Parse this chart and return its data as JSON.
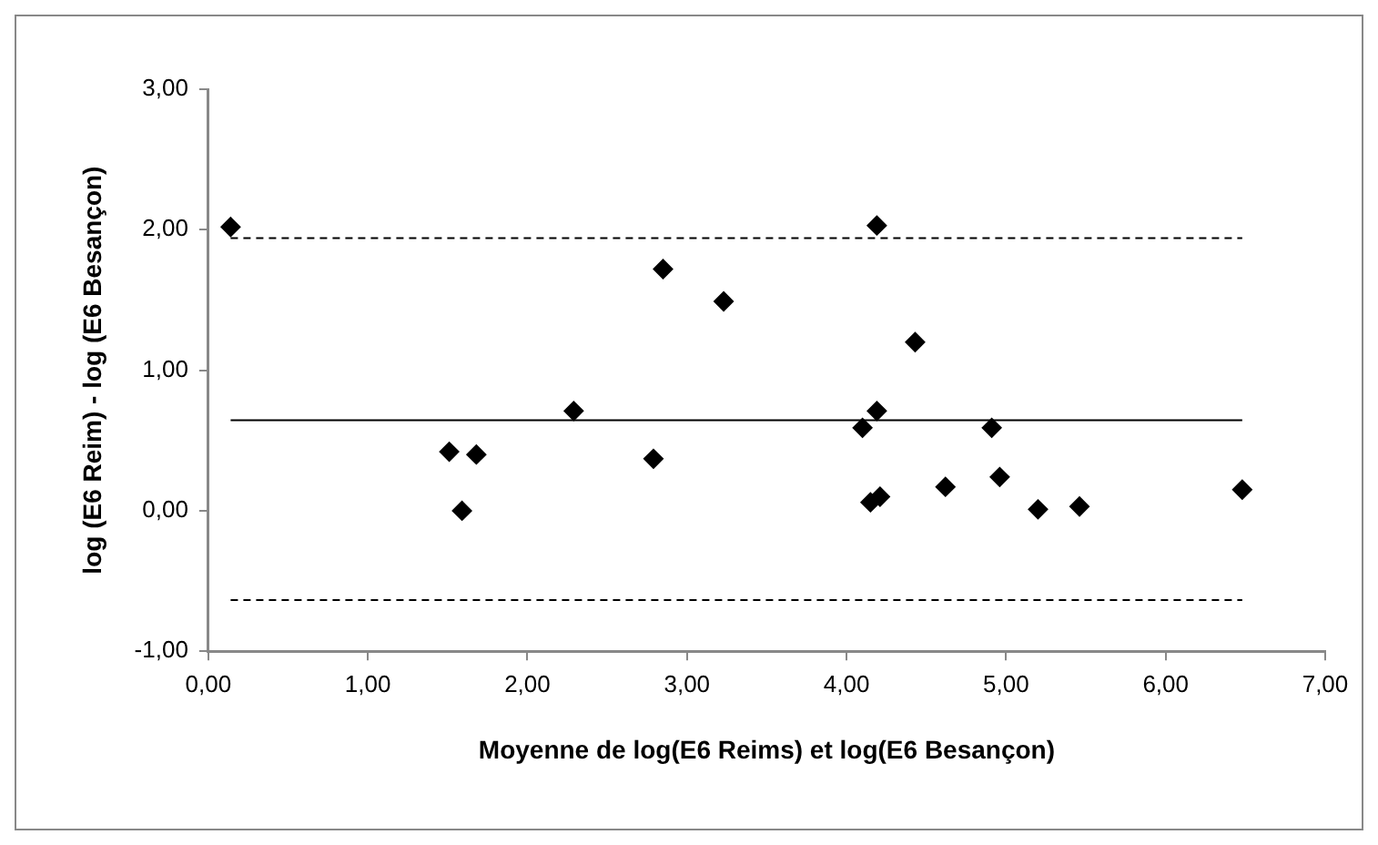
{
  "chart_data": {
    "type": "scatter",
    "xlabel": "Moyenne de log(E6 Reims) et log(E6 Besançon)",
    "ylabel": "log (E6 Reim) - log (E6 Besançon)",
    "x": [
      0.14,
      1.51,
      1.68,
      1.59,
      2.29,
      2.79,
      2.85,
      3.23,
      4.19,
      4.43,
      4.19,
      4.1,
      4.91,
      4.96,
      4.62,
      4.15,
      4.21,
      5.2,
      5.46,
      6.48
    ],
    "series": [
      {
        "color": "#000000",
        "values": [
          2.02,
          0.42,
          0.4,
          0.0,
          0.71,
          0.37,
          1.72,
          1.49,
          2.03,
          1.2,
          0.71,
          0.59,
          0.59,
          0.24,
          0.17,
          0.06,
          0.1,
          0.01,
          0.03,
          0.15
        ]
      }
    ],
    "marker": "diamond",
    "grid": false,
    "legend": false,
    "xlim": [
      0,
      7
    ],
    "ylim": [
      -1,
      3
    ],
    "xticks": [
      {
        "value": 0,
        "label": "0,00"
      },
      {
        "value": 1,
        "label": "1,00"
      },
      {
        "value": 2,
        "label": "2,00"
      },
      {
        "value": 3,
        "label": "3,00"
      },
      {
        "value": 4,
        "label": "4,00"
      },
      {
        "value": 5,
        "label": "5,00"
      },
      {
        "value": 6,
        "label": "6,00"
      },
      {
        "value": 7,
        "label": "7,00"
      }
    ],
    "yticks": [
      {
        "value": -1,
        "label": "-1,00"
      },
      {
        "value": 0,
        "label": "0,00"
      },
      {
        "value": 1,
        "label": "1,00"
      },
      {
        "value": 2,
        "label": "2,00"
      },
      {
        "value": 3,
        "label": "3,00"
      }
    ],
    "ref_lines": [
      {
        "axis": "y",
        "value": 0.645,
        "color": "#000000",
        "line_style": "solid"
      },
      {
        "axis": "y",
        "value": 1.94,
        "color": "#000000",
        "line_style": "dashed"
      },
      {
        "axis": "y",
        "value": -0.635,
        "color": "#000000",
        "line_style": "dashed"
      }
    ]
  }
}
